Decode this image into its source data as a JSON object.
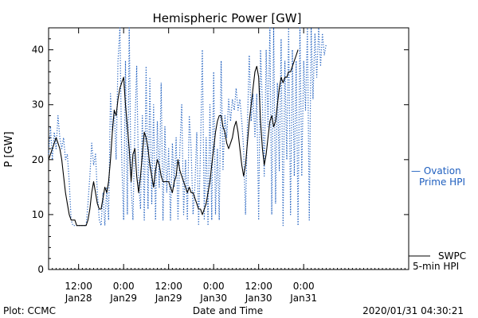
{
  "chart_data": {
    "type": "line",
    "title": "Hemispheric Power [GW]",
    "xlabel": "Date and Time",
    "ylabel": "P [GW]",
    "ylim": [
      0,
      44
    ],
    "yticks": [
      0,
      10,
      20,
      30,
      40
    ],
    "x_unit": "hours from 2020-01-27 04:00",
    "xlim": [
      0,
      96
    ],
    "xticks": [
      {
        "x": 8,
        "time": "12:00",
        "date": "Jan28"
      },
      {
        "x": 20,
        "time": "0:00",
        "date": "Jan29"
      },
      {
        "x": 32,
        "time": "12:00",
        "date": "Jan29"
      },
      {
        "x": 44,
        "time": "0:00",
        "date": "Jan30"
      },
      {
        "x": 56,
        "time": "12:00",
        "date": "Jan30"
      },
      {
        "x": 68,
        "time": "0:00",
        "date": "Jan31"
      }
    ],
    "grid": false,
    "legend": [
      {
        "line1": "— Ovation",
        "line2": "Prime HPI",
        "color": "#1f5fbf",
        "style": "dotted"
      },
      {
        "line1": "SWPC",
        "line2": "5-min HPI",
        "color": "#000000",
        "style": "solid"
      }
    ],
    "series": [
      {
        "name": "Ovation Prime HPI",
        "color": "#1f5fbf",
        "style": "dotted",
        "points": [
          [
            0,
            21
          ],
          [
            0.5,
            26
          ],
          [
            1,
            20
          ],
          [
            1.5,
            25
          ],
          [
            2,
            22
          ],
          [
            2.5,
            28
          ],
          [
            3,
            24
          ],
          [
            3.5,
            22
          ],
          [
            4,
            24
          ],
          [
            4.5,
            20
          ],
          [
            5,
            21
          ],
          [
            5.5,
            16
          ],
          [
            6,
            9
          ],
          [
            6.5,
            8
          ],
          [
            7,
            8
          ],
          [
            7.5,
            8
          ],
          [
            8,
            8
          ],
          [
            8.5,
            8
          ],
          [
            9,
            8
          ],
          [
            9.5,
            8
          ],
          [
            10,
            8
          ],
          [
            10.5,
            12
          ],
          [
            11,
            17
          ],
          [
            11.5,
            23
          ],
          [
            12,
            19
          ],
          [
            12.5,
            21
          ],
          [
            13,
            14
          ],
          [
            13.5,
            9
          ],
          [
            14,
            8
          ],
          [
            14.5,
            14
          ],
          [
            15,
            8
          ],
          [
            15.5,
            15
          ],
          [
            16,
            9
          ],
          [
            16.5,
            32
          ],
          [
            17,
            25
          ],
          [
            17.5,
            29
          ],
          [
            18,
            20
          ],
          [
            18.5,
            38
          ],
          [
            19,
            44
          ],
          [
            19.5,
            20
          ],
          [
            20,
            9
          ],
          [
            20.5,
            38
          ],
          [
            21,
            10
          ],
          [
            21.5,
            44
          ],
          [
            22,
            15
          ],
          [
            22.5,
            9
          ],
          [
            23,
            26
          ],
          [
            23.5,
            37
          ],
          [
            24,
            16
          ],
          [
            24.5,
            11
          ],
          [
            25,
            28
          ],
          [
            25.5,
            9
          ],
          [
            26,
            37
          ],
          [
            26.5,
            11
          ],
          [
            27,
            35
          ],
          [
            27.5,
            12
          ],
          [
            28,
            30
          ],
          [
            28.5,
            9
          ],
          [
            29,
            27
          ],
          [
            29.5,
            15
          ],
          [
            30,
            34
          ],
          [
            30.5,
            9
          ],
          [
            31,
            26
          ],
          [
            31.5,
            14
          ],
          [
            32,
            22
          ],
          [
            32.5,
            9
          ],
          [
            33,
            23
          ],
          [
            33.5,
            15
          ],
          [
            34,
            24
          ],
          [
            34.5,
            9
          ],
          [
            35,
            22
          ],
          [
            35.5,
            30
          ],
          [
            36,
            10
          ],
          [
            36.5,
            20
          ],
          [
            37,
            9
          ],
          [
            37.5,
            28
          ],
          [
            38,
            22
          ],
          [
            38.5,
            10
          ],
          [
            39,
            15
          ],
          [
            39.5,
            25
          ],
          [
            40,
            8
          ],
          [
            40.5,
            22
          ],
          [
            41,
            40
          ],
          [
            41.5,
            9
          ],
          [
            42,
            24
          ],
          [
            42.5,
            8
          ],
          [
            43,
            30
          ],
          [
            43.5,
            9
          ],
          [
            44,
            36
          ],
          [
            44.5,
            10
          ],
          [
            45,
            22
          ],
          [
            45.5,
            9
          ],
          [
            46,
            38
          ],
          [
            46.5,
            18
          ],
          [
            47,
            28
          ],
          [
            47.5,
            24
          ],
          [
            48,
            31
          ],
          [
            48.5,
            27
          ],
          [
            49,
            31
          ],
          [
            49.5,
            29
          ],
          [
            50,
            33
          ],
          [
            50.5,
            29
          ],
          [
            51,
            31
          ],
          [
            51.5,
            27
          ],
          [
            52,
            22
          ],
          [
            52.5,
            10
          ],
          [
            53,
            26
          ],
          [
            53.5,
            39
          ],
          [
            54,
            27
          ],
          [
            54.5,
            32
          ],
          [
            55,
            24
          ],
          [
            55.5,
            32
          ],
          [
            56,
            9
          ],
          [
            56.5,
            40
          ],
          [
            57,
            30
          ],
          [
            57.5,
            17
          ],
          [
            58,
            40
          ],
          [
            58.5,
            26
          ],
          [
            59,
            44
          ],
          [
            59.5,
            10
          ],
          [
            60,
            44
          ],
          [
            60.5,
            12
          ],
          [
            61,
            34
          ],
          [
            61.5,
            18
          ],
          [
            62,
            42
          ],
          [
            62.5,
            8
          ],
          [
            63,
            38
          ],
          [
            63.5,
            20
          ],
          [
            64,
            44
          ],
          [
            64.5,
            10
          ],
          [
            65,
            40
          ],
          [
            65.5,
            17
          ],
          [
            66,
            38
          ],
          [
            66.5,
            8
          ],
          [
            67,
            44
          ],
          [
            67.5,
            17
          ],
          [
            68,
            38
          ],
          [
            68.5,
            29
          ],
          [
            69,
            44
          ],
          [
            69.5,
            9
          ],
          [
            70,
            44
          ],
          [
            70.5,
            31
          ],
          [
            71,
            43
          ],
          [
            71.5,
            35
          ],
          [
            72,
            44
          ],
          [
            72.5,
            37
          ],
          [
            73,
            43
          ],
          [
            73.5,
            39
          ],
          [
            74,
            41
          ]
        ]
      },
      {
        "name": "SWPC 5-min HPI",
        "color": "#000000",
        "style": "solid",
        "points": [
          [
            0,
            20
          ],
          [
            0.5,
            21
          ],
          [
            1,
            22
          ],
          [
            1.5,
            23
          ],
          [
            2,
            24
          ],
          [
            2.5,
            23
          ],
          [
            3,
            22
          ],
          [
            3.5,
            20
          ],
          [
            4,
            17
          ],
          [
            4.5,
            14
          ],
          [
            5,
            12
          ],
          [
            5.5,
            10
          ],
          [
            6,
            9
          ],
          [
            6.5,
            9
          ],
          [
            7,
            9
          ],
          [
            7.5,
            8
          ],
          [
            8,
            8
          ],
          [
            8.5,
            8
          ],
          [
            9,
            8
          ],
          [
            9.5,
            8
          ],
          [
            10,
            8
          ],
          [
            10.5,
            9
          ],
          [
            11,
            11
          ],
          [
            11.5,
            14
          ],
          [
            12,
            16
          ],
          [
            12.5,
            14
          ],
          [
            13,
            12
          ],
          [
            13.5,
            11
          ],
          [
            14,
            11
          ],
          [
            14.5,
            13
          ],
          [
            15,
            15
          ],
          [
            15.5,
            14
          ],
          [
            16,
            16
          ],
          [
            16.5,
            20
          ],
          [
            17,
            25
          ],
          [
            17.5,
            29
          ],
          [
            18,
            28
          ],
          [
            18.5,
            31
          ],
          [
            19,
            33
          ],
          [
            19.5,
            34
          ],
          [
            20,
            35
          ],
          [
            20.5,
            30
          ],
          [
            21,
            26
          ],
          [
            21.5,
            22
          ],
          [
            22,
            16
          ],
          [
            22.5,
            21
          ],
          [
            23,
            22
          ],
          [
            23.5,
            17
          ],
          [
            24,
            14
          ],
          [
            24.5,
            17
          ],
          [
            25,
            21
          ],
          [
            25.5,
            25
          ],
          [
            26,
            24
          ],
          [
            26.5,
            22
          ],
          [
            27,
            19
          ],
          [
            27.5,
            17
          ],
          [
            28,
            15
          ],
          [
            28.5,
            18
          ],
          [
            29,
            20
          ],
          [
            29.5,
            19
          ],
          [
            30,
            17
          ],
          [
            30.5,
            16
          ],
          [
            31,
            16
          ],
          [
            31.5,
            16
          ],
          [
            32,
            16
          ],
          [
            32.5,
            15
          ],
          [
            33,
            14
          ],
          [
            33.5,
            16
          ],
          [
            34,
            17
          ],
          [
            34.5,
            20
          ],
          [
            35,
            18
          ],
          [
            35.5,
            17
          ],
          [
            36,
            16
          ],
          [
            36.5,
            15
          ],
          [
            37,
            14
          ],
          [
            37.5,
            15
          ],
          [
            38,
            14
          ],
          [
            38.5,
            14
          ],
          [
            39,
            13
          ],
          [
            39.5,
            12
          ],
          [
            40,
            11
          ],
          [
            40.5,
            11
          ],
          [
            41,
            10
          ],
          [
            41.5,
            11
          ],
          [
            42,
            12
          ],
          [
            42.5,
            14
          ],
          [
            43,
            16
          ],
          [
            43.5,
            19
          ],
          [
            44,
            22
          ],
          [
            44.5,
            25
          ],
          [
            45,
            27
          ],
          [
            45.5,
            28
          ],
          [
            46,
            28
          ],
          [
            46.5,
            26
          ],
          [
            47,
            25
          ],
          [
            47.5,
            23
          ],
          [
            48,
            22
          ],
          [
            48.5,
            23
          ],
          [
            49,
            24
          ],
          [
            49.5,
            26
          ],
          [
            50,
            27
          ],
          [
            50.5,
            25
          ],
          [
            51,
            22
          ],
          [
            51.5,
            19
          ],
          [
            52,
            17
          ],
          [
            52.5,
            19
          ],
          [
            53,
            23
          ],
          [
            53.5,
            27
          ],
          [
            54,
            30
          ],
          [
            54.5,
            33
          ],
          [
            55,
            36
          ],
          [
            55.5,
            37
          ],
          [
            56,
            35
          ],
          [
            56.5,
            27
          ],
          [
            57,
            22
          ],
          [
            57.5,
            19
          ],
          [
            58,
            21
          ],
          [
            58.5,
            24
          ],
          [
            59,
            27
          ],
          [
            59.5,
            28
          ],
          [
            60,
            26
          ],
          [
            60.5,
            27
          ],
          [
            61,
            30
          ],
          [
            61.5,
            33
          ],
          [
            62,
            35
          ],
          [
            62.5,
            34
          ],
          [
            63,
            35
          ],
          [
            63.5,
            35
          ],
          [
            64,
            36
          ],
          [
            64.5,
            36
          ],
          [
            65,
            37
          ],
          [
            65.5,
            38
          ],
          [
            66,
            39
          ],
          [
            66.5,
            40
          ]
        ]
      }
    ]
  },
  "footer": {
    "plot_credit": "Plot: CCMC",
    "timestamp": "2020/01/31 04:30:21"
  }
}
